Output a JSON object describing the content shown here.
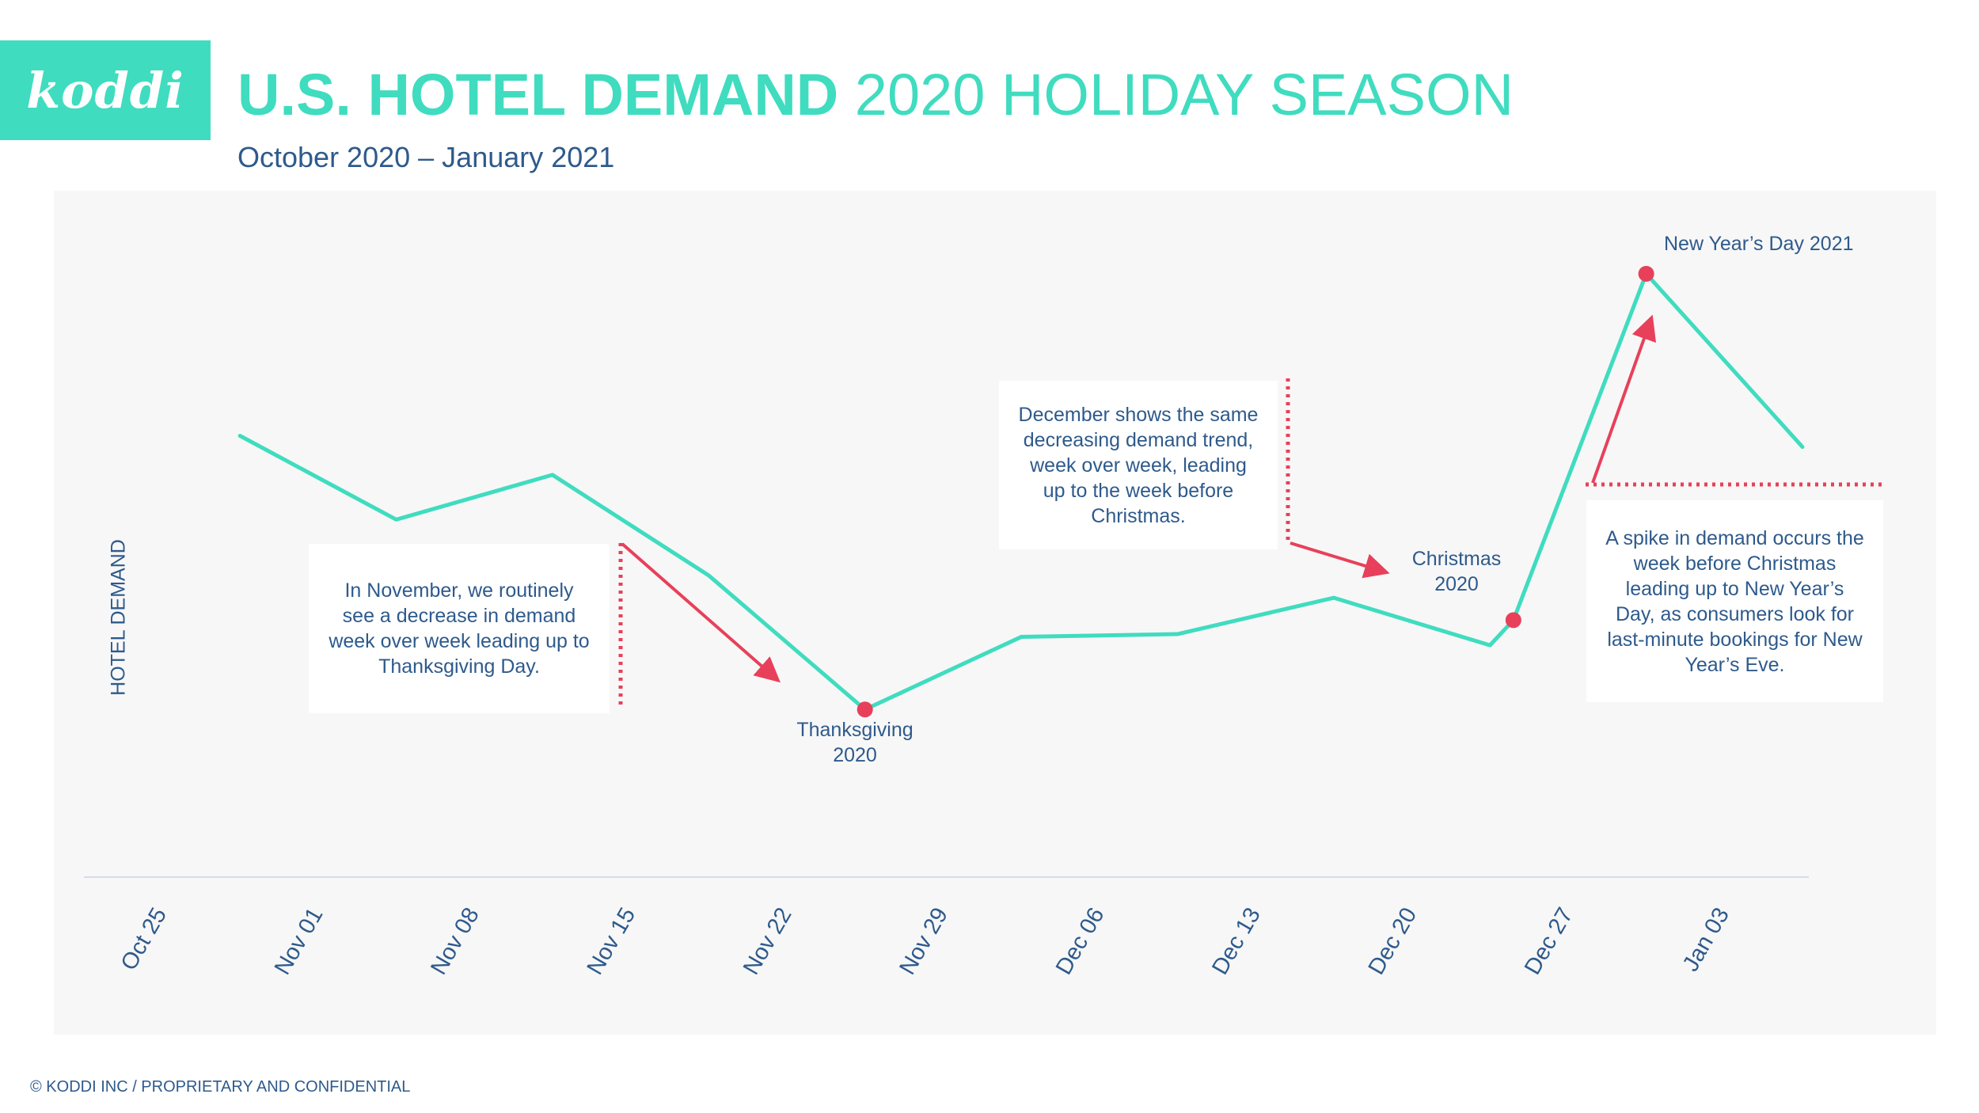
{
  "brand": {
    "logo_text": "koddi",
    "accent_color": "#40dcbf",
    "highlight_color": "#e8405a",
    "text_color": "#2e5a8c"
  },
  "header": {
    "title_bold": "U.S. HOTEL DEMAND",
    "title_rest": "2020 HOLIDAY SEASON",
    "subtitle": "October 2020 – January 2021"
  },
  "chart_data": {
    "type": "line",
    "ylabel": "HOTEL DEMAND",
    "categories": [
      "Oct 25",
      "Nov 01",
      "Nov 08",
      "Nov 15",
      "Nov 22",
      "Nov 29",
      "Dec 06",
      "Dec 13",
      "Dec 20",
      "Dec 27",
      "Jan 03"
    ],
    "series": [
      {
        "values": [
          {
            "x": 0.5,
            "y": 66
          },
          {
            "x": 1.5,
            "y": 51
          },
          {
            "x": 2.5,
            "y": 59
          },
          {
            "x": 3.5,
            "y": 41
          },
          {
            "x": 4.5,
            "y": 17
          },
          {
            "x": 5.5,
            "y": 30
          },
          {
            "x": 6.5,
            "y": 30.5
          },
          {
            "x": 7.5,
            "y": 37
          },
          {
            "x": 8.5,
            "y": 28.5
          },
          {
            "x": 8.65,
            "y": 33
          },
          {
            "x": 9.5,
            "y": 95
          },
          {
            "x": 10.5,
            "y": 64
          }
        ]
      }
    ],
    "ylim": [
      -13,
      110
    ],
    "xlim": [
      -0.6,
      10.5
    ],
    "grid": false,
    "highlighted_points": [
      {
        "x": 4.5,
        "y": 17,
        "label": "Thanksgiving\n2020"
      },
      {
        "x": 8.65,
        "y": 33,
        "label": "Christmas\n2020"
      },
      {
        "x": 9.5,
        "y": 95,
        "label": "New Year’s Day 2021"
      }
    ]
  },
  "annotations": {
    "november": "In November, we routinely see a decrease in demand week over week leading up to Thanksgiving Day.",
    "december": "December shows the same decreasing demand trend, week over week,  leading up to the week before Christmas.",
    "spike": "A spike in demand occurs the week before Christmas leading up to New Year’s Day, as consumers look for last-minute bookings for New Year’s Eve."
  },
  "footer": {
    "text": "© KODDI INC / PROPRIETARY AND CONFIDENTIAL"
  }
}
